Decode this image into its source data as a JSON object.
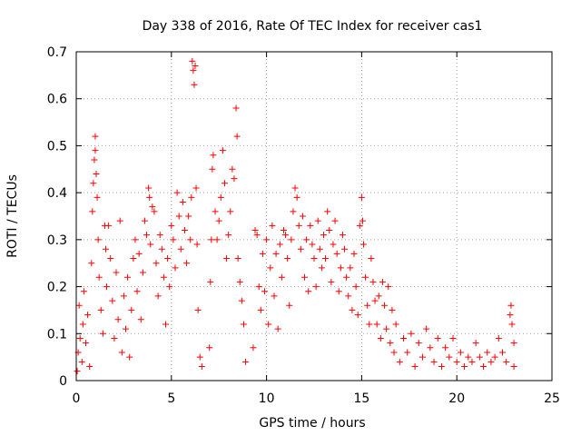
{
  "chart_data": {
    "type": "scatter",
    "title": "Day 338 of 2016, Rate Of TEC Index for receiver cas1",
    "xlabel": "GPS time / hours",
    "ylabel": "ROTI / TECUs",
    "xlim": [
      0,
      25
    ],
    "ylim": [
      0,
      0.7
    ],
    "xticks": [
      0,
      5,
      10,
      15,
      20,
      25
    ],
    "yticks": [
      0,
      0.1,
      0.2,
      0.3,
      0.4,
      0.5,
      0.6,
      0.7
    ],
    "xtick_labels": [
      "0",
      "5",
      "10",
      "15",
      "20",
      "25"
    ],
    "ytick_labels": [
      "0",
      "0.1",
      "0.2",
      "0.3",
      "0.4",
      "0.5",
      "0.6",
      "0.7"
    ],
    "grid": true,
    "marker": "+",
    "color": "#ff0000",
    "series": [
      {
        "name": "cas1",
        "points": [
          [
            0.05,
            0.02
          ],
          [
            0.1,
            0.06
          ],
          [
            0.15,
            0.16
          ],
          [
            0.2,
            0.09
          ],
          [
            0.3,
            0.04
          ],
          [
            0.35,
            0.12
          ],
          [
            0.4,
            0.19
          ],
          [
            0.5,
            0.08
          ],
          [
            0.6,
            0.14
          ],
          [
            0.7,
            0.03
          ],
          [
            0.8,
            0.25
          ],
          [
            0.85,
            0.36
          ],
          [
            0.9,
            0.42
          ],
          [
            0.95,
            0.47
          ],
          [
            1.0,
            0.52
          ],
          [
            1.0,
            0.49
          ],
          [
            1.05,
            0.44
          ],
          [
            1.1,
            0.39
          ],
          [
            1.15,
            0.3
          ],
          [
            1.2,
            0.22
          ],
          [
            1.3,
            0.15
          ],
          [
            1.4,
            0.1
          ],
          [
            1.5,
            0.33
          ],
          [
            1.55,
            0.28
          ],
          [
            1.6,
            0.2
          ],
          [
            1.7,
            0.33
          ],
          [
            1.8,
            0.26
          ],
          [
            1.9,
            0.17
          ],
          [
            2.0,
            0.09
          ],
          [
            2.1,
            0.23
          ],
          [
            2.2,
            0.13
          ],
          [
            2.3,
            0.34
          ],
          [
            2.4,
            0.06
          ],
          [
            2.5,
            0.18
          ],
          [
            2.6,
            0.11
          ],
          [
            2.7,
            0.22
          ],
          [
            2.8,
            0.05
          ],
          [
            2.9,
            0.15
          ],
          [
            3.0,
            0.26
          ],
          [
            3.1,
            0.3
          ],
          [
            3.2,
            0.19
          ],
          [
            3.3,
            0.27
          ],
          [
            3.4,
            0.13
          ],
          [
            3.5,
            0.23
          ],
          [
            3.6,
            0.34
          ],
          [
            3.7,
            0.31
          ],
          [
            3.8,
            0.41
          ],
          [
            3.85,
            0.39
          ],
          [
            3.9,
            0.29
          ],
          [
            4.0,
            0.37
          ],
          [
            4.1,
            0.36
          ],
          [
            4.2,
            0.25
          ],
          [
            4.3,
            0.18
          ],
          [
            4.4,
            0.31
          ],
          [
            4.5,
            0.28
          ],
          [
            4.6,
            0.22
          ],
          [
            4.7,
            0.12
          ],
          [
            4.8,
            0.26
          ],
          [
            4.9,
            0.2
          ],
          [
            5.0,
            0.33
          ],
          [
            5.1,
            0.3
          ],
          [
            5.2,
            0.24
          ],
          [
            5.3,
            0.4
          ],
          [
            5.4,
            0.35
          ],
          [
            5.5,
            0.28
          ],
          [
            5.6,
            0.38
          ],
          [
            5.7,
            0.32
          ],
          [
            5.8,
            0.25
          ],
          [
            5.9,
            0.35
          ],
          [
            6.0,
            0.3
          ],
          [
            6.05,
            0.39
          ],
          [
            6.1,
            0.68
          ],
          [
            6.15,
            0.66
          ],
          [
            6.2,
            0.63
          ],
          [
            6.25,
            0.67
          ],
          [
            6.3,
            0.41
          ],
          [
            6.35,
            0.29
          ],
          [
            6.4,
            0.15
          ],
          [
            6.5,
            0.05
          ],
          [
            6.6,
            0.03
          ],
          [
            7.0,
            0.07
          ],
          [
            7.05,
            0.21
          ],
          [
            7.1,
            0.3
          ],
          [
            7.15,
            0.45
          ],
          [
            7.2,
            0.48
          ],
          [
            7.3,
            0.36
          ],
          [
            7.4,
            0.3
          ],
          [
            7.5,
            0.34
          ],
          [
            7.6,
            0.39
          ],
          [
            7.7,
            0.49
          ],
          [
            7.8,
            0.42
          ],
          [
            7.9,
            0.26
          ],
          [
            8.0,
            0.31
          ],
          [
            8.1,
            0.36
          ],
          [
            8.2,
            0.45
          ],
          [
            8.3,
            0.43
          ],
          [
            8.4,
            0.58
          ],
          [
            8.45,
            0.52
          ],
          [
            8.5,
            0.26
          ],
          [
            8.6,
            0.21
          ],
          [
            8.7,
            0.17
          ],
          [
            8.8,
            0.12
          ],
          [
            8.9,
            0.04
          ],
          [
            9.3,
            0.07
          ],
          [
            9.4,
            0.32
          ],
          [
            9.5,
            0.31
          ],
          [
            9.6,
            0.2
          ],
          [
            9.7,
            0.15
          ],
          [
            9.8,
            0.27
          ],
          [
            9.9,
            0.19
          ],
          [
            10.0,
            0.3
          ],
          [
            10.1,
            0.12
          ],
          [
            10.2,
            0.24
          ],
          [
            10.3,
            0.33
          ],
          [
            10.4,
            0.18
          ],
          [
            10.5,
            0.27
          ],
          [
            10.6,
            0.11
          ],
          [
            10.7,
            0.29
          ],
          [
            10.8,
            0.22
          ],
          [
            10.9,
            0.32
          ],
          [
            11.0,
            0.31
          ],
          [
            11.1,
            0.26
          ],
          [
            11.2,
            0.16
          ],
          [
            11.3,
            0.3
          ],
          [
            11.4,
            0.36
          ],
          [
            11.5,
            0.41
          ],
          [
            11.6,
            0.39
          ],
          [
            11.7,
            0.33
          ],
          [
            11.8,
            0.28
          ],
          [
            11.9,
            0.35
          ],
          [
            12.0,
            0.22
          ],
          [
            12.1,
            0.3
          ],
          [
            12.2,
            0.19
          ],
          [
            12.3,
            0.33
          ],
          [
            12.4,
            0.29
          ],
          [
            12.5,
            0.26
          ],
          [
            12.6,
            0.2
          ],
          [
            12.7,
            0.34
          ],
          [
            12.8,
            0.28
          ],
          [
            12.9,
            0.24
          ],
          [
            13.0,
            0.31
          ],
          [
            13.1,
            0.26
          ],
          [
            13.2,
            0.36
          ],
          [
            13.3,
            0.32
          ],
          [
            13.4,
            0.21
          ],
          [
            13.5,
            0.29
          ],
          [
            13.6,
            0.34
          ],
          [
            13.7,
            0.27
          ],
          [
            13.8,
            0.19
          ],
          [
            13.9,
            0.24
          ],
          [
            14.0,
            0.31
          ],
          [
            14.1,
            0.28
          ],
          [
            14.2,
            0.22
          ],
          [
            14.3,
            0.18
          ],
          [
            14.4,
            0.24
          ],
          [
            14.5,
            0.15
          ],
          [
            14.6,
            0.27
          ],
          [
            14.7,
            0.2
          ],
          [
            14.8,
            0.14
          ],
          [
            14.9,
            0.33
          ],
          [
            15.0,
            0.39
          ],
          [
            15.05,
            0.34
          ],
          [
            15.1,
            0.29
          ],
          [
            15.2,
            0.22
          ],
          [
            15.3,
            0.16
          ],
          [
            15.4,
            0.12
          ],
          [
            15.5,
            0.26
          ],
          [
            15.6,
            0.21
          ],
          [
            15.7,
            0.17
          ],
          [
            15.8,
            0.12
          ],
          [
            15.9,
            0.18
          ],
          [
            16.0,
            0.09
          ],
          [
            16.1,
            0.21
          ],
          [
            16.2,
            0.16
          ],
          [
            16.3,
            0.11
          ],
          [
            16.4,
            0.2
          ],
          [
            16.5,
            0.08
          ],
          [
            16.6,
            0.15
          ],
          [
            16.7,
            0.06
          ],
          [
            16.8,
            0.12
          ],
          [
            17.0,
            0.04
          ],
          [
            17.2,
            0.09
          ],
          [
            17.4,
            0.06
          ],
          [
            17.6,
            0.1
          ],
          [
            17.8,
            0.03
          ],
          [
            18.0,
            0.08
          ],
          [
            18.2,
            0.05
          ],
          [
            18.4,
            0.11
          ],
          [
            18.6,
            0.07
          ],
          [
            18.8,
            0.04
          ],
          [
            19.0,
            0.09
          ],
          [
            19.2,
            0.03
          ],
          [
            19.4,
            0.07
          ],
          [
            19.6,
            0.05
          ],
          [
            19.8,
            0.09
          ],
          [
            20.0,
            0.04
          ],
          [
            20.2,
            0.06
          ],
          [
            20.4,
            0.03
          ],
          [
            20.6,
            0.05
          ],
          [
            20.8,
            0.04
          ],
          [
            21.0,
            0.08
          ],
          [
            21.2,
            0.05
          ],
          [
            21.4,
            0.03
          ],
          [
            21.6,
            0.06
          ],
          [
            21.8,
            0.04
          ],
          [
            22.0,
            0.05
          ],
          [
            22.2,
            0.09
          ],
          [
            22.4,
            0.06
          ],
          [
            22.6,
            0.04
          ],
          [
            22.8,
            0.14
          ],
          [
            22.85,
            0.16
          ],
          [
            22.9,
            0.12
          ],
          [
            23.0,
            0.08
          ],
          [
            23.0,
            0.03
          ]
        ]
      }
    ]
  }
}
